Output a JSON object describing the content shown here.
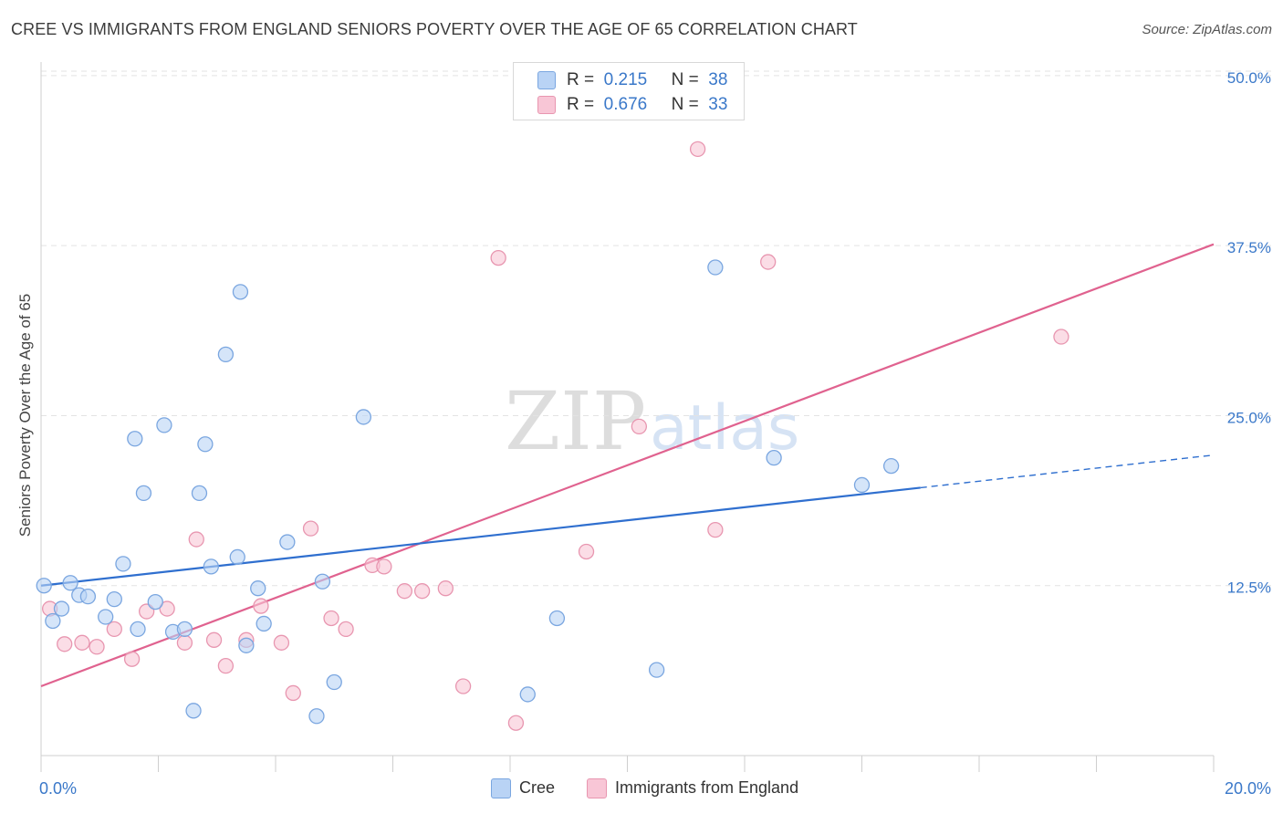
{
  "title": "CREE VS IMMIGRANTS FROM ENGLAND SENIORS POVERTY OVER THE AGE OF 65 CORRELATION CHART",
  "source": "Source: ZipAtlas.com",
  "watermark": {
    "zip": "ZIP",
    "atlas": "atlas"
  },
  "legend_top": [
    {
      "r_label": "R =",
      "r_value": "0.215",
      "n_label": "N =",
      "n_value": "38"
    },
    {
      "r_label": "R =",
      "r_value": "0.676",
      "n_label": "N =",
      "n_value": "33"
    }
  ],
  "legend_bottom": [
    "Cree",
    "Immigrants from England"
  ],
  "colors": {
    "cree_fill": "#b9d3f5",
    "cree_stroke": "#7aa6e0",
    "cree_line": "#2f6fcf",
    "eng_fill": "#f8c6d6",
    "eng_stroke": "#e896b0",
    "eng_line": "#e0628f",
    "tick_label": "#3a78c9",
    "grid": "#e3e3e3"
  },
  "chart_data": {
    "type": "scatter",
    "title": "CREE VS IMMIGRANTS FROM ENGLAND SENIORS POVERTY OVER THE AGE OF 65 CORRELATION CHART",
    "xlabel": "",
    "ylabel": "Seniors Poverty Over the Age of 65",
    "xlim": [
      0,
      20
    ],
    "ylim": [
      0,
      51
    ],
    "x_tick_labels": [
      "0.0%",
      "20.0%"
    ],
    "y_ticks": [
      12.5,
      25,
      37.5,
      50
    ],
    "y_tick_labels": [
      "12.5%",
      "25.0%",
      "37.5%",
      "50.0%"
    ],
    "grid": true,
    "legend_position": "top-center",
    "series": [
      {
        "name": "Cree",
        "r": 0.215,
        "n": 38,
        "points": [
          [
            0.05,
            12.5
          ],
          [
            0.2,
            9.9
          ],
          [
            0.35,
            10.8
          ],
          [
            0.5,
            12.7
          ],
          [
            0.65,
            11.8
          ],
          [
            0.8,
            11.7
          ],
          [
            1.1,
            10.2
          ],
          [
            1.25,
            11.5
          ],
          [
            1.4,
            14.1
          ],
          [
            1.6,
            23.3
          ],
          [
            1.65,
            9.3
          ],
          [
            1.75,
            19.3
          ],
          [
            1.95,
            11.3
          ],
          [
            2.1,
            24.3
          ],
          [
            2.25,
            9.1
          ],
          [
            2.45,
            9.3
          ],
          [
            2.6,
            3.3
          ],
          [
            2.7,
            19.3
          ],
          [
            2.8,
            22.9
          ],
          [
            2.9,
            13.9
          ],
          [
            3.15,
            29.5
          ],
          [
            3.35,
            14.6
          ],
          [
            3.4,
            34.1
          ],
          [
            3.5,
            8.1
          ],
          [
            3.7,
            12.3
          ],
          [
            3.8,
            9.7
          ],
          [
            4.2,
            15.7
          ],
          [
            4.7,
            2.9
          ],
          [
            4.8,
            12.8
          ],
          [
            5.0,
            5.4
          ],
          [
            5.5,
            24.9
          ],
          [
            8.3,
            4.5
          ],
          [
            8.8,
            10.1
          ],
          [
            10.5,
            6.3
          ],
          [
            11.5,
            35.9
          ],
          [
            12.5,
            21.9
          ],
          [
            14.0,
            19.9
          ],
          [
            14.5,
            21.3
          ]
        ],
        "trend": {
          "x": [
            0,
            15
          ],
          "y": [
            12.5,
            19.7
          ]
        },
        "trend_extension": {
          "x": [
            15,
            20
          ],
          "y": [
            19.7,
            22.1
          ]
        }
      },
      {
        "name": "Immigrants from England",
        "r": 0.676,
        "n": 33,
        "points": [
          [
            0.15,
            10.8
          ],
          [
            0.4,
            8.2
          ],
          [
            0.7,
            8.3
          ],
          [
            0.95,
            8.0
          ],
          [
            1.25,
            9.3
          ],
          [
            1.55,
            7.1
          ],
          [
            1.8,
            10.6
          ],
          [
            2.15,
            10.8
          ],
          [
            2.45,
            8.3
          ],
          [
            2.65,
            15.9
          ],
          [
            2.95,
            8.5
          ],
          [
            3.15,
            6.6
          ],
          [
            3.5,
            8.5
          ],
          [
            3.75,
            11.0
          ],
          [
            4.1,
            8.3
          ],
          [
            4.3,
            4.6
          ],
          [
            4.6,
            16.7
          ],
          [
            4.95,
            10.1
          ],
          [
            5.2,
            9.3
          ],
          [
            5.65,
            14.0
          ],
          [
            5.85,
            13.9
          ],
          [
            6.2,
            12.1
          ],
          [
            6.5,
            12.1
          ],
          [
            6.9,
            12.3
          ],
          [
            7.2,
            5.1
          ],
          [
            8.1,
            2.4
          ],
          [
            7.8,
            36.6
          ],
          [
            9.3,
            15.0
          ],
          [
            10.2,
            24.2
          ],
          [
            11.2,
            44.6
          ],
          [
            11.5,
            16.6
          ],
          [
            12.4,
            36.3
          ],
          [
            17.4,
            30.8
          ]
        ],
        "trend": {
          "x": [
            0,
            20
          ],
          "y": [
            5.1,
            37.6
          ]
        }
      }
    ]
  }
}
